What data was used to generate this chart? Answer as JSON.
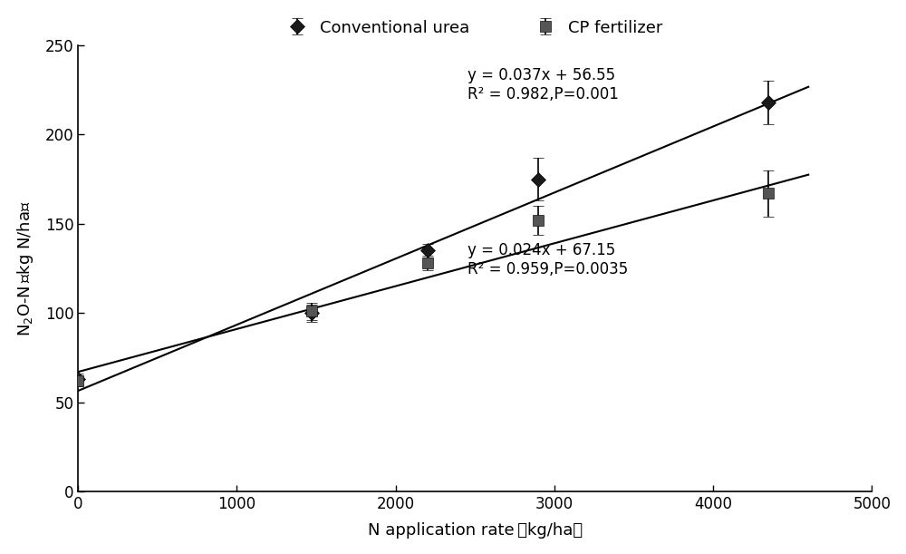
{
  "conventional_urea": {
    "x": [
      0,
      1470,
      2200,
      2900,
      4350
    ],
    "y": [
      63,
      100,
      135,
      175,
      218
    ],
    "yerr": [
      3,
      5,
      4,
      12,
      12
    ],
    "label": "Conventional urea",
    "equation": "y = 0.037x + 56.55",
    "r2_p": "R² = 0.982,P=0.001",
    "eq_x": 2450,
    "eq_y": 218,
    "slope": 0.037,
    "intercept": 56.55
  },
  "cp_fertilizer": {
    "x": [
      0,
      1470,
      2200,
      2900,
      4350
    ],
    "y": [
      62,
      101,
      128,
      152,
      167
    ],
    "yerr": [
      3,
      5,
      4,
      8,
      13
    ],
    "label": "CP fertilizer",
    "equation": "y = 0.024x + 67.15",
    "r2_p": "R² = 0.959,P=0.0035",
    "eq_x": 2450,
    "eq_y": 120,
    "slope": 0.024,
    "intercept": 67.15
  },
  "xlim": [
    0,
    5000
  ],
  "ylim": [
    0,
    250
  ],
  "xlabel": "N application rate （kg/ha）",
  "ylabel": "$N_2O$-N  (kg N/ha)",
  "xticks": [
    0,
    1000,
    2000,
    3000,
    4000,
    5000
  ],
  "yticks": [
    0,
    50,
    100,
    150,
    200,
    250
  ],
  "background_color": "#ffffff",
  "line_color": "#000000",
  "marker_color_diamond": "#1a1a1a",
  "marker_color_square": "#555555",
  "figsize": [
    10,
    6.11
  ],
  "dpi": 100,
  "x_line_end": 4600
}
